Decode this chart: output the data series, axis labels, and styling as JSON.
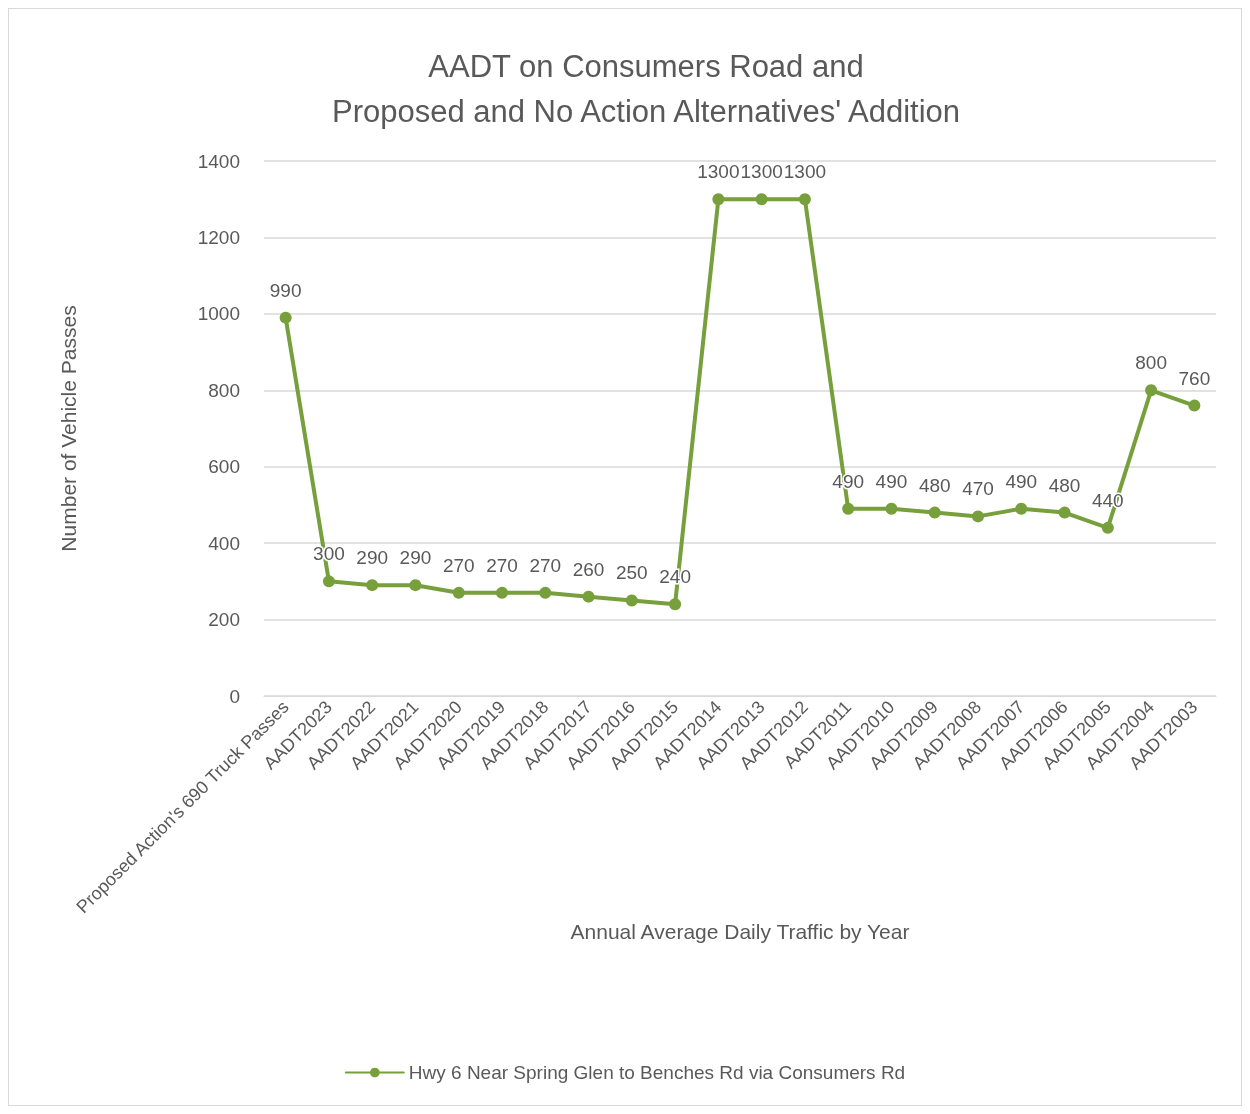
{
  "chart_data": {
    "type": "line",
    "title": "AADT on Consumers Road and\nProposed and No Action Alternatives' Addition",
    "xlabel": "Annual Average Daily Traffic by Year",
    "ylabel": "Number of Vehicle Passes",
    "categories": [
      "Proposed Action's 690 Truck Passes",
      "AADT2023",
      "AADT2022",
      "AADT2021",
      "AADT2020",
      "AADT2019",
      "AADT2018",
      "AADT2017",
      "AADT2016",
      "AADT2015",
      "AADT2014",
      "AADT2013",
      "AADT2012",
      "AADT2011",
      "AADT2010",
      "AADT2009",
      "AADT2008",
      "AADT2007",
      "AADT2006",
      "AADT2005",
      "AADT2004",
      "AADT2003"
    ],
    "series": [
      {
        "name": "Hwy 6 Near Spring Glen to Benches Rd via Consumers Rd",
        "color": "#77a03c",
        "values": [
          990,
          300,
          290,
          290,
          270,
          270,
          270,
          260,
          250,
          240,
          1300,
          1300,
          1300,
          490,
          490,
          480,
          470,
          490,
          480,
          440,
          800,
          760
        ]
      }
    ],
    "ylim": [
      0,
      1400
    ],
    "yticks": [
      0,
      200,
      400,
      600,
      800,
      1000,
      1200,
      1400
    ],
    "grid": "y",
    "legend": "bottom",
    "marker": "circle",
    "line_style": "solid",
    "data_labels": true
  }
}
